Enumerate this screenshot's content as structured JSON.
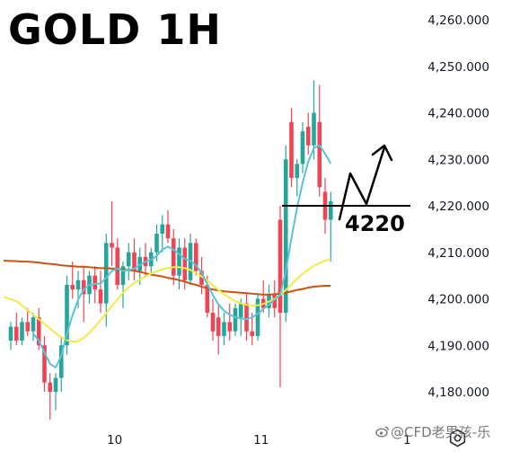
{
  "chart_data": {
    "type": "candlestick",
    "title": "GOLD 1H",
    "y_ticks": [
      {
        "value": 4260,
        "label": "4,260.000"
      },
      {
        "value": 4250,
        "label": "4,250.000"
      },
      {
        "value": 4240,
        "label": "4,240.000"
      },
      {
        "value": 4230,
        "label": "4,230.000"
      },
      {
        "value": 4220,
        "label": "4,220.000"
      },
      {
        "value": 4210,
        "label": "4,210.000"
      },
      {
        "value": 4200,
        "label": "4,200.000"
      },
      {
        "value": 4190,
        "label": "4,190.000"
      },
      {
        "value": 4180,
        "label": "4,180.000"
      }
    ],
    "x_ticks": [
      {
        "label": "10",
        "index": 18.5
      },
      {
        "label": "11",
        "index": 44.6
      },
      {
        "label": "1",
        "index": 70.6
      }
    ],
    "ylim": [
      4172,
      4264
    ],
    "grid": false,
    "candle_fields": [
      "open",
      "high",
      "low",
      "close"
    ],
    "candles": [
      [
        4191,
        4195,
        4189,
        4194
      ],
      [
        4194,
        4197,
        4190,
        4191
      ],
      [
        4191,
        4196,
        4190,
        4195
      ],
      [
        4195,
        4198,
        4192,
        4193
      ],
      [
        4193,
        4197,
        4191,
        4196
      ],
      [
        4196,
        4198,
        4189,
        4190
      ],
      [
        4190,
        4192,
        4180,
        4182
      ],
      [
        4182,
        4184,
        4174,
        4180
      ],
      [
        4180,
        4184,
        4176,
        4183
      ],
      [
        4183,
        4192,
        4180,
        4190
      ],
      [
        4190,
        4205,
        4188,
        4203
      ],
      [
        4203,
        4208,
        4200,
        4202
      ],
      [
        4202,
        4206,
        4198,
        4204
      ],
      [
        4204,
        4207,
        4195,
        4201
      ],
      [
        4201,
        4206,
        4199,
        4205
      ],
      [
        4205,
        4207,
        4199,
        4202
      ],
      [
        4202,
        4206,
        4197,
        4199
      ],
      [
        4199,
        4214,
        4194,
        4212
      ],
      [
        4212,
        4221,
        4207,
        4211
      ],
      [
        4211,
        4213,
        4202,
        4203
      ],
      [
        4203,
        4208,
        4198,
        4207
      ],
      [
        4207,
        4212,
        4204,
        4210
      ],
      [
        4210,
        4213,
        4204,
        4206
      ],
      [
        4206,
        4211,
        4203,
        4209
      ],
      [
        4209,
        4212,
        4205,
        4207
      ],
      [
        4207,
        4211,
        4205,
        4210
      ],
      [
        4210,
        4216,
        4208,
        4214
      ],
      [
        4214,
        4218,
        4210,
        4216
      ],
      [
        4216,
        4219,
        4212,
        4213
      ],
      [
        4213,
        4215,
        4203,
        4205
      ],
      [
        4205,
        4213,
        4202,
        4211
      ],
      [
        4211,
        4213,
        4202,
        4204
      ],
      [
        4204,
        4214,
        4203,
        4212
      ],
      [
        4212,
        4213,
        4205,
        4206
      ],
      [
        4206,
        4209,
        4201,
        4203
      ],
      [
        4203,
        4205,
        4196,
        4197
      ],
      [
        4197,
        4200,
        4191,
        4193
      ],
      [
        4196,
        4199,
        4188,
        4192
      ],
      [
        4192,
        4197,
        4190,
        4195
      ],
      [
        4195,
        4199,
        4191,
        4193
      ],
      [
        4193,
        4199,
        4192,
        4198
      ],
      [
        4196,
        4200,
        4192,
        4199
      ],
      [
        4199,
        4201,
        4191,
        4193
      ],
      [
        4193,
        4197,
        4190,
        4192
      ],
      [
        4192,
        4201,
        4191,
        4200
      ],
      [
        4200,
        4204,
        4197,
        4198
      ],
      [
        4198,
        4203,
        4196,
        4201
      ],
      [
        4201,
        4204,
        4196,
        4198
      ],
      [
        4217,
        4220,
        4181,
        4197
      ],
      [
        4197,
        4233,
        4195,
        4230
      ],
      [
        4238,
        4241,
        4224,
        4226
      ],
      [
        4226,
        4230,
        4222,
        4229
      ],
      [
        4229,
        4238,
        4227,
        4236
      ],
      [
        4237,
        4240,
        4231,
        4233
      ],
      [
        4233,
        4247,
        4230,
        4240
      ],
      [
        4238,
        4246,
        4222,
        4224
      ],
      [
        4223,
        4226,
        4214,
        4217
      ],
      [
        4217,
        4223,
        4208,
        4221
      ]
    ],
    "series": [
      {
        "color": "#cc5214",
        "values": [
          4208.2,
          4208.1,
          4208.0,
          4208.0,
          4207.9,
          4207.8,
          4207.6,
          4207.5,
          4207.4,
          4207.2,
          4207.1,
          4207.0,
          4206.9,
          4206.9,
          4206.8,
          4206.7,
          4206.6,
          4206.6,
          4206.5,
          4206.4,
          4206.3,
          4206.2,
          4206.0,
          4205.8,
          4205.5,
          4205.2,
          4205.0,
          4204.8,
          4204.5,
          4204.3,
          4204.0,
          4203.7,
          4203.3,
          4203.0,
          4202.6,
          4202.3,
          4202.0,
          4201.8,
          4201.6,
          4201.5,
          4201.4,
          4201.3,
          4201.2,
          4201.1,
          4201.0,
          4200.9,
          4200.9,
          4201.0,
          4201.1,
          4201.3,
          4201.6,
          4201.9,
          4202.1,
          4202.4,
          4202.6,
          4202.7,
          4202.8,
          4202.8
        ]
      },
      {
        "color": "#f3ea4a",
        "values": [
          4200.4,
          4199.5,
          4198.6,
          4197.6,
          4196.6,
          4195.6,
          4194.6,
          4193.6,
          4192.6,
          4191.7,
          4191.1,
          4190.8,
          4190.9,
          4191.6,
          4192.7,
          4194.0,
          4195.4,
          4196.9,
          4198.4,
          4199.9,
          4201.3,
          4202.5,
          4203.4,
          4204.1,
          4204.8,
          4205.4,
          4205.9,
          4206.3,
          4206.6,
          4206.8,
          4206.8,
          4206.6,
          4206.2,
          4205.6,
          4204.8,
          4203.9,
          4202.9,
          4201.9,
          4201.0,
          4200.2,
          4199.5,
          4199.0,
          4198.7,
          4198.5,
          4198.6,
          4198.9,
          4199.4,
          4200.0,
          4200.8,
          4201.9,
          4203.1,
          4204.3,
          4205.4,
          4206.3,
          4207.1,
          4207.7,
          4208.2,
          4208.6
        ]
      },
      {
        "color": "#58c3d8",
        "values": [
          null,
          null,
          null,
          null,
          4192.5,
          4191.0,
          4188.5,
          4186.0,
          4185.2,
          4187.8,
          4192.5,
          4196.5,
          4199.8,
          4202.0,
          4203.0,
          4203.2,
          4203.3,
          4204.5,
          4206.0,
          4206.5,
          4206.0,
          4206.2,
          4206.5,
          4207.3,
          4208.0,
          4208.4,
          4209.2,
          4210.6,
          4211.2,
          4210.6,
          4209.6,
          4208.6,
          4208.2,
          4207.2,
          4205.6,
          4203.2,
          4200.8,
          4198.8,
          4197.4,
          4196.6,
          4196.0,
          4195.8,
          4195.6,
          4196.0,
          4196.8,
          4197.8,
          4198.8,
          4199.8,
          4200.8,
          4206.0,
          4213.0,
          4219.5,
          4225.0,
          4229.5,
          4232.4,
          4233.0,
          4231.2,
          4229.1
        ]
      }
    ],
    "annotation": {
      "label": "4220",
      "price": 4220,
      "color": "#000000"
    },
    "colors": {
      "up": "#26a69a",
      "down": "#ef4454",
      "axis_text": "#131722"
    }
  },
  "watermark": {
    "text": "@CFD老男孩-乐",
    "icon": "weibo-logo-icon"
  },
  "toolbar": {
    "settings_icon": "gear-icon"
  }
}
